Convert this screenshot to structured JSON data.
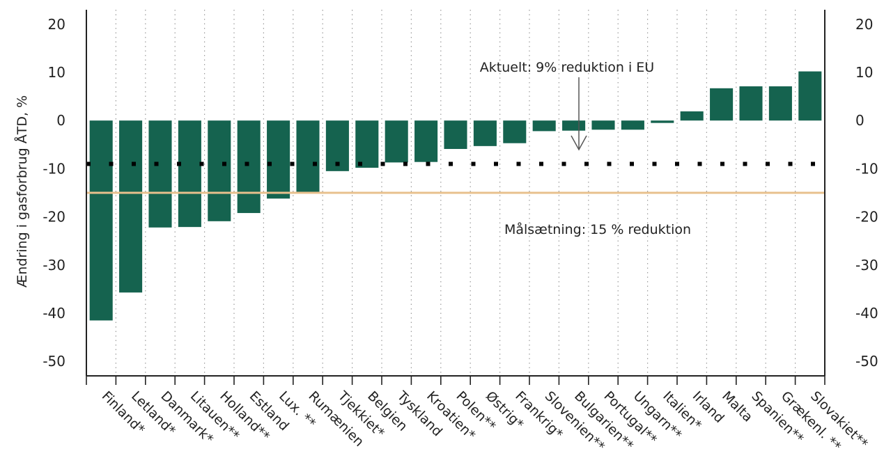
{
  "chart_data": {
    "type": "bar",
    "ylabel": "Ændring i gasforbrug ÅTD, %",
    "ylim": [
      -53,
      23
    ],
    "yticks": [
      20,
      10,
      0,
      -10,
      -20,
      -30,
      -40,
      -50
    ],
    "categories": [
      "Finland*",
      "Letland*",
      "Danmark*",
      "Litauen**",
      "Holland**",
      "Estland",
      "Lux. **",
      "Rumænien",
      "Tjekkiet*",
      "Belgien",
      "Tyskland",
      "Kroatien*",
      "Polen**",
      "Østrig*",
      "Frankrig*",
      "Slovenien**",
      "Bulgarien**",
      "Portugal**",
      "Ungarn**",
      "Italien*",
      "Irland",
      "Malta",
      "Spanien**",
      "Grækenl. **",
      "Slovakiet**"
    ],
    "values": [
      -41.5,
      -35.7,
      -22.2,
      -22.1,
      -20.9,
      -19.2,
      -16.2,
      -15.2,
      -10.5,
      -9.8,
      -8.7,
      -8.6,
      -5.9,
      -5.3,
      -4.7,
      -2.2,
      -2.1,
      -1.9,
      -1.9,
      -0.5,
      1.9,
      6.7,
      7.1,
      7.1,
      10.2
    ],
    "bar_color": "#15634F",
    "reference_lines": [
      {
        "label": "Aktuelt: 9% reduktion i EU",
        "value": -9,
        "style": "dotted",
        "color": "#000000"
      },
      {
        "label": "Målsætning: 15 % reduktion",
        "value": -15,
        "style": "solid",
        "color": "#E8C08D"
      }
    ],
    "grid": "vertical dotted between categories"
  }
}
